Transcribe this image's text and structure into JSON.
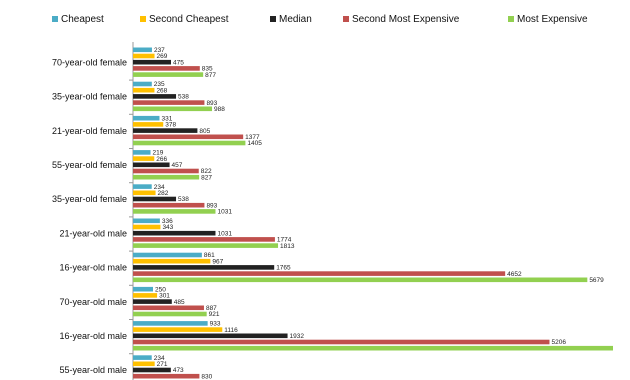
{
  "chart_data": {
    "type": "hbar",
    "categories": [
      "70-year-old female",
      "35-year-old female",
      "21-year-old female",
      "55-year-old female",
      "35-year-old female",
      "21-year-old male",
      "16-year-old male",
      "70-year-old male",
      "16-year-old male",
      "55-year-old male"
    ],
    "series": [
      {
        "name": "Cheapest",
        "color": "#4bacc6",
        "values": [
          237,
          235,
          331,
          219,
          234,
          336,
          861,
          250,
          933,
          234
        ]
      },
      {
        "name": "Second Cheapest",
        "color": "#ffc000",
        "values": [
          269,
          268,
          378,
          266,
          282,
          343,
          967,
          301,
          1116,
          271
        ]
      },
      {
        "name": "Median",
        "color": "#222222",
        "values": [
          475,
          538,
          805,
          457,
          538,
          1031,
          1765,
          485,
          1932,
          473
        ]
      },
      {
        "name": "Second Most Expensive",
        "color": "#c0504d",
        "values": [
          835,
          893,
          1377,
          822,
          893,
          1774,
          4652,
          887,
          5206,
          830
        ]
      },
      {
        "name": "Most Expensive",
        "color": "#92d050",
        "values": [
          877,
          988,
          1405,
          827,
          1031,
          1813,
          5679,
          921,
          6000,
          null
        ]
      }
    ],
    "xlim": [
      0,
      6000
    ]
  }
}
